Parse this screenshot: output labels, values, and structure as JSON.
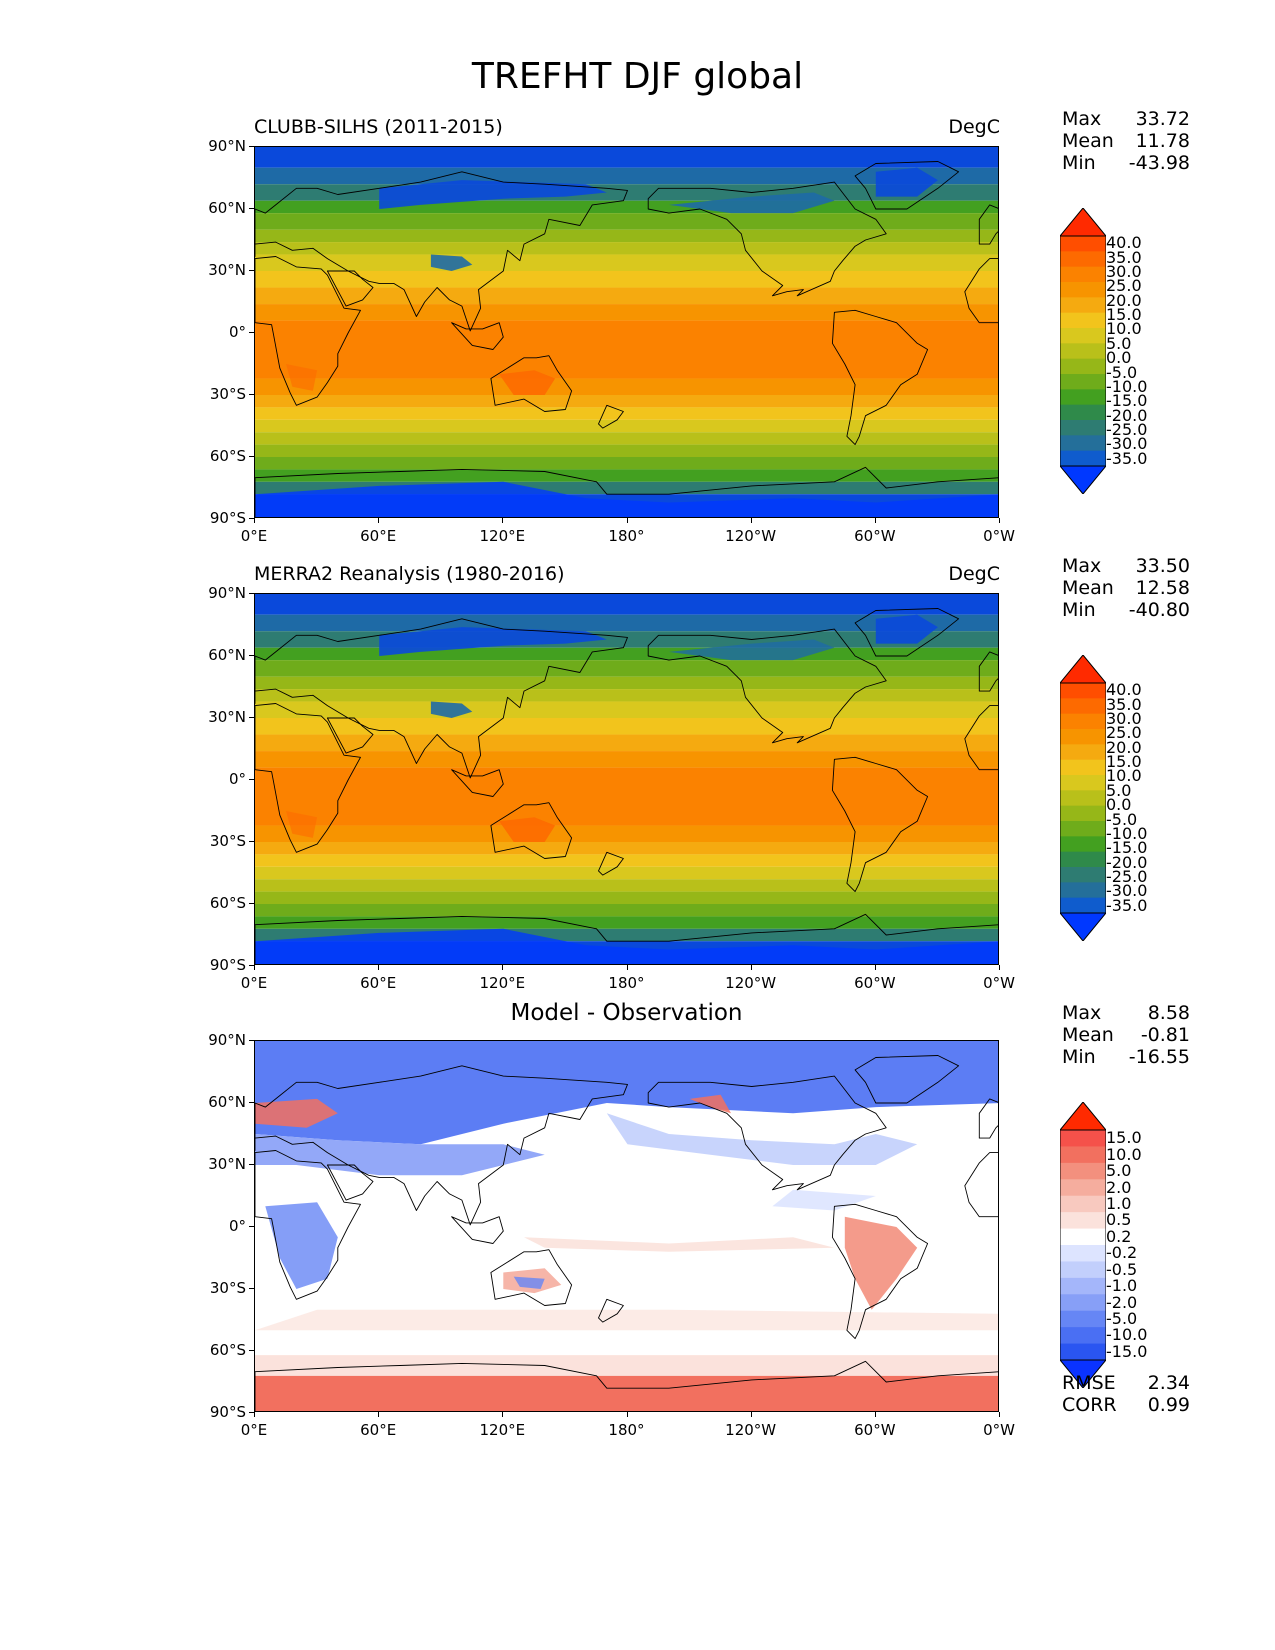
{
  "title": "TREFHT DJF global",
  "axes": {
    "lat_ticks": [
      "90°N",
      "60°N",
      "30°N",
      "0°",
      "30°S",
      "60°S",
      "90°S"
    ],
    "lon_ticks": [
      "0°E",
      "60°E",
      "120°E",
      "180°",
      "120°W",
      "60°W",
      "0°W"
    ]
  },
  "panels": [
    {
      "id": "model",
      "left_title": "CLUBB-SILHS (2011-2015)",
      "center_title": "",
      "units": "DegC",
      "stats": [
        {
          "label": "Max",
          "value": "33.72"
        },
        {
          "label": "Mean",
          "value": "11.78"
        },
        {
          "label": "Min",
          "value": "-43.98"
        }
      ],
      "colorbar": "temperature",
      "footer_stats": []
    },
    {
      "id": "obs",
      "left_title": "MERRA2 Reanalysis (1980-2016)",
      "center_title": "",
      "units": "DegC",
      "stats": [
        {
          "label": "Max",
          "value": "33.50"
        },
        {
          "label": "Mean",
          "value": "12.58"
        },
        {
          "label": "Min",
          "value": "-40.80"
        }
      ],
      "colorbar": "temperature",
      "footer_stats": []
    },
    {
      "id": "diff",
      "left_title": "",
      "center_title": "Model - Observation",
      "units": "",
      "stats": [
        {
          "label": "Max",
          "value": "8.58"
        },
        {
          "label": "Mean",
          "value": "-0.81"
        },
        {
          "label": "Min",
          "value": "-16.55"
        }
      ],
      "colorbar": "difference",
      "footer_stats": [
        {
          "label": "RMSE",
          "value": "2.34"
        },
        {
          "label": "CORR",
          "value": "0.99"
        }
      ]
    }
  ],
  "colorbars": {
    "temperature": {
      "levels": [
        "40.0",
        "35.0",
        "30.0",
        "25.0",
        "20.0",
        "15.0",
        "10.0",
        "5.0",
        "0.0",
        "-5.0",
        "-10.0",
        "-15.0",
        "-20.0",
        "-25.0",
        "-30.0",
        "-35.0"
      ],
      "colors": [
        "#ff2a00",
        "#ff4e00",
        "#fd6a00",
        "#fb8200",
        "#f79400",
        "#f5aa10",
        "#f2c41c",
        "#d9c81e",
        "#b9c01a",
        "#96b718",
        "#6fac1b",
        "#43a020",
        "#2f8a4a",
        "#2e7c72",
        "#246f9a",
        "#0f5ccd",
        "#0038ff"
      ]
    },
    "difference": {
      "levels": [
        "15.0",
        "10.0",
        "5.0",
        "2.0",
        "1.0",
        "0.5",
        "0.2",
        "-0.2",
        "-0.5",
        "-1.0",
        "-2.0",
        "-5.0",
        "-10.0",
        "-15.0"
      ],
      "colors": [
        "#ff2a00",
        "#f5514a",
        "#f2705f",
        "#f3907e",
        "#f5ad9e",
        "#f8c9bf",
        "#fbe2dc",
        "#ffffff",
        "#dde4ff",
        "#c2cffc",
        "#a4b6fa",
        "#879ff7",
        "#6686f5",
        "#4a6ff3",
        "#2a55f1",
        "#0a33ff"
      ]
    }
  }
}
